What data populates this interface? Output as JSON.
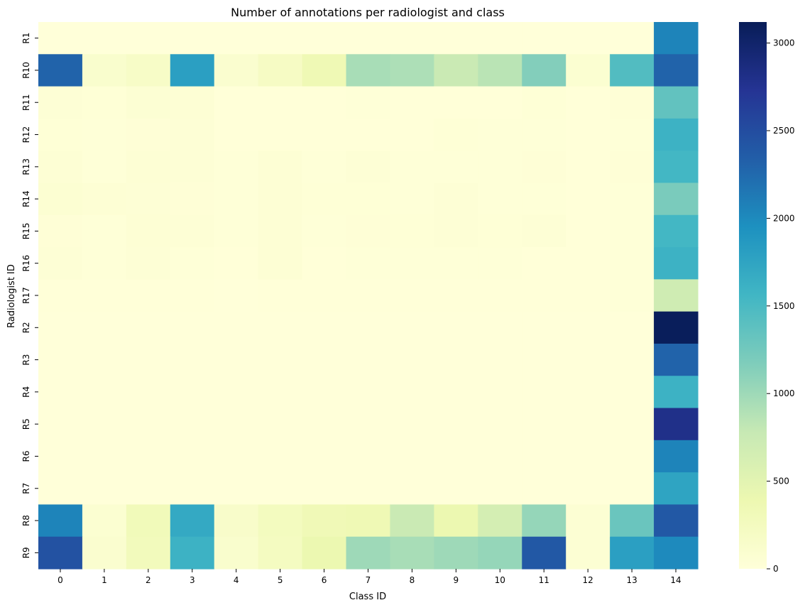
{
  "chart_data": {
    "type": "heatmap",
    "title": "Number of annotations per radiologist and class",
    "xlabel": "Class ID",
    "ylabel": "Radiologist ID",
    "x_categories": [
      "0",
      "1",
      "2",
      "3",
      "4",
      "5",
      "6",
      "7",
      "8",
      "9",
      "10",
      "11",
      "12",
      "13",
      "14"
    ],
    "y_categories": [
      "R1",
      "R10",
      "R11",
      "R12",
      "R13",
      "R14",
      "R15",
      "R16",
      "R17",
      "R2",
      "R3",
      "R4",
      "R5",
      "R6",
      "R7",
      "R8",
      "R9"
    ],
    "values": [
      [
        0,
        0,
        0,
        0,
        0,
        0,
        0,
        0,
        0,
        0,
        0,
        0,
        0,
        0,
        2050
      ],
      [
        2300,
        120,
        180,
        1800,
        100,
        200,
        350,
        950,
        920,
        750,
        850,
        1150,
        80,
        1450,
        2300
      ],
      [
        40,
        25,
        60,
        45,
        10,
        10,
        10,
        20,
        10,
        10,
        10,
        25,
        10,
        30,
        1350
      ],
      [
        25,
        15,
        30,
        35,
        8,
        10,
        8,
        10,
        10,
        25,
        15,
        15,
        8,
        20,
        1600
      ],
      [
        45,
        20,
        50,
        40,
        15,
        45,
        15,
        40,
        20,
        20,
        20,
        30,
        10,
        30,
        1550
      ],
      [
        70,
        50,
        35,
        30,
        15,
        45,
        25,
        25,
        20,
        35,
        15,
        15,
        10,
        20,
        1200
      ],
      [
        30,
        15,
        50,
        40,
        15,
        50,
        15,
        30,
        25,
        35,
        25,
        40,
        10,
        20,
        1550
      ],
      [
        35,
        20,
        40,
        20,
        10,
        45,
        10,
        15,
        20,
        15,
        15,
        10,
        10,
        15,
        1600
      ],
      [
        10,
        5,
        5,
        5,
        2,
        5,
        5,
        5,
        5,
        5,
        5,
        5,
        5,
        15,
        700
      ],
      [
        0,
        0,
        0,
        0,
        0,
        0,
        0,
        0,
        0,
        0,
        0,
        0,
        0,
        0,
        3100
      ],
      [
        0,
        0,
        0,
        0,
        0,
        0,
        0,
        0,
        0,
        0,
        0,
        0,
        0,
        0,
        2300
      ],
      [
        0,
        0,
        0,
        0,
        0,
        0,
        0,
        0,
        0,
        0,
        0,
        0,
        0,
        0,
        1600
      ],
      [
        0,
        0,
        0,
        0,
        0,
        0,
        0,
        0,
        0,
        0,
        0,
        0,
        0,
        0,
        2800
      ],
      [
        0,
        0,
        0,
        0,
        0,
        0,
        0,
        0,
        0,
        0,
        0,
        0,
        0,
        0,
        2050
      ],
      [
        0,
        0,
        0,
        0,
        0,
        0,
        0,
        0,
        0,
        0,
        0,
        0,
        0,
        0,
        1750
      ],
      [
        2050,
        80,
        300,
        1700,
        150,
        250,
        330,
        350,
        750,
        400,
        650,
        1050,
        60,
        1300,
        2400
      ],
      [
        2450,
        100,
        280,
        1600,
        120,
        230,
        400,
        1000,
        950,
        1000,
        1050,
        2400,
        60,
        1800,
        2000
      ]
    ],
    "vmin": 0,
    "vmax": 3120,
    "colorbar_ticks": [
      0,
      500,
      1000,
      1500,
      2000,
      2500,
      3000
    ],
    "colormap": [
      "#ffffd9",
      "#edf8b1",
      "#c7e9b4",
      "#7fcdbb",
      "#41b6c4",
      "#1d91c0",
      "#225ea8",
      "#253494",
      "#081d58"
    ],
    "grid": false,
    "legend": "colorbar-right"
  }
}
